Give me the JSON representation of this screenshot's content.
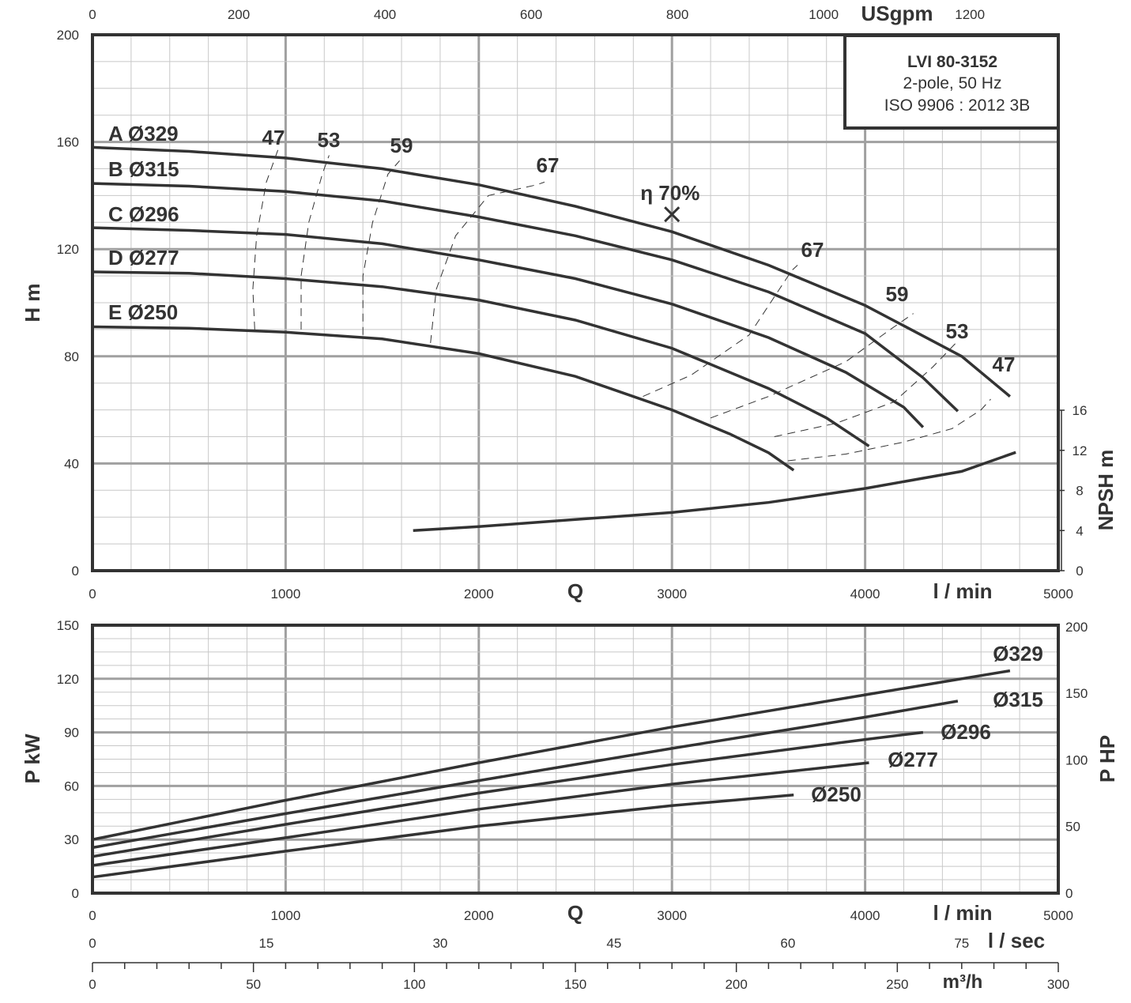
{
  "chart_data": [
    {
      "type": "line",
      "title": "LVI 80-3152",
      "subtitle_lines": [
        "2-pole, 50 Hz",
        "ISO 9906 : 2012 3B"
      ],
      "xlabel": "Q",
      "x_unit": "l / min",
      "xlim": [
        0,
        5000
      ],
      "x_ticks": [
        0,
        1000,
        2000,
        3000,
        4000,
        5000
      ],
      "top_axis": {
        "unit": "USgpm",
        "ticks": [
          0,
          200,
          400,
          600,
          800,
          1000,
          1200
        ]
      },
      "ylabel": "H m",
      "ylim": [
        0,
        200
      ],
      "y_ticks": [
        0,
        40,
        80,
        120,
        160,
        200
      ],
      "y2label": "NPSH m",
      "y2_ticks": [
        0,
        4,
        8,
        12,
        16
      ],
      "grid": true,
      "series": [
        {
          "name": "A Ø329",
          "x": [
            0,
            500,
            1000,
            1500,
            2000,
            2500,
            3000,
            3500,
            4000,
            4500,
            4750
          ],
          "y": [
            158,
            156.5,
            154,
            150,
            144,
            136,
            126.5,
            114,
            99,
            80,
            65
          ]
        },
        {
          "name": "B Ø315",
          "x": [
            0,
            500,
            1000,
            1500,
            2000,
            2500,
            3000,
            3500,
            4000,
            4300,
            4480
          ],
          "y": [
            144.5,
            143.5,
            141.5,
            138,
            132,
            125,
            116,
            104,
            88.5,
            72,
            59.5
          ]
        },
        {
          "name": "C Ø296",
          "x": [
            0,
            500,
            1000,
            1500,
            2000,
            2500,
            3000,
            3500,
            3900,
            4200,
            4300
          ],
          "y": [
            128,
            127,
            125.5,
            122,
            116,
            109,
            99.5,
            87,
            74,
            61,
            53.5
          ]
        },
        {
          "name": "D Ø277",
          "x": [
            0,
            500,
            1000,
            1500,
            2000,
            2500,
            3000,
            3500,
            3800,
            4020
          ],
          "y": [
            111.5,
            111,
            109,
            106,
            101,
            93.5,
            83,
            68,
            57,
            46.5
          ]
        },
        {
          "name": "E Ø250",
          "x": [
            0,
            500,
            1000,
            1500,
            2000,
            2500,
            3000,
            3300,
            3500,
            3630
          ],
          "y": [
            91,
            90.5,
            89,
            86.5,
            81,
            72.5,
            60,
            51,
            44,
            37.5
          ]
        }
      ],
      "npsh_curve": {
        "x": [
          1660,
          2000,
          2500,
          3000,
          3500,
          4000,
          4500,
          4780
        ],
        "y": [
          4,
          4.4,
          5.1,
          5.8,
          6.8,
          8.2,
          9.9,
          11.8
        ]
      },
      "efficiency_lines": [
        {
          "label": "47",
          "left": {
            "x": [
              840,
              830,
              850,
              900,
              960
            ],
            "y": [
              90,
              105,
              125,
              145,
              157
            ]
          },
          "right": {
            "x": [
              3600,
              3900,
              4200,
              4450,
              4600,
              4650
            ],
            "y": [
              41,
              43.5,
              48,
              53,
              60,
              64
            ]
          }
        },
        {
          "label": "53",
          "left": {
            "x": [
              1080,
              1080,
              1120,
              1190,
              1225
            ],
            "y": [
              90,
              110,
              130,
              148,
              155
            ]
          },
          "right": {
            "x": [
              3530,
              3850,
              4150,
              4350,
              4470
            ],
            "y": [
              50,
              55,
              63,
              76,
              85
            ]
          }
        },
        {
          "label": "59",
          "left": {
            "x": [
              1400,
              1400,
              1450,
              1530,
              1590
            ],
            "y": [
              88,
              110,
              130,
              148,
              153
            ]
          },
          "right": {
            "x": [
              3200,
              3500,
              3900,
              4130,
              4250
            ],
            "y": [
              57,
              65,
              78,
              90,
              96
            ]
          }
        },
        {
          "label": "67",
          "left": {
            "x": [
              1750,
              1780,
              1880,
              2050,
              2300,
              2340
            ],
            "y": [
              85,
              105,
              125,
              140,
              144,
              145
            ]
          },
          "right": {
            "x": [
              2850,
              3100,
              3400,
              3620,
              3650
            ],
            "y": [
              65,
              73,
              88,
              112,
              114
            ]
          }
        }
      ],
      "best_efficiency_point": {
        "label": "η 70%",
        "x": 3000,
        "y": 133
      }
    },
    {
      "type": "line",
      "xlabel": "Q",
      "x_unit": "l / min",
      "xlim": [
        0,
        5000
      ],
      "x_ticks": [
        0,
        1000,
        2000,
        3000,
        4000,
        5000
      ],
      "ylabel": "P kW",
      "ylim": [
        0,
        150
      ],
      "y_ticks": [
        0,
        30,
        60,
        90,
        120,
        150
      ],
      "y2label": "P HP",
      "y2_ticks": [
        0,
        50,
        100,
        150,
        200
      ],
      "grid": true,
      "series": [
        {
          "name": "Ø329",
          "x": [
            0,
            1000,
            2000,
            3000,
            4000,
            4750
          ],
          "y": [
            30,
            52,
            73,
            93,
            111,
            124.5
          ]
        },
        {
          "name": "Ø315",
          "x": [
            0,
            1000,
            2000,
            3000,
            4000,
            4480
          ],
          "y": [
            25.5,
            44.5,
            63,
            81,
            98.5,
            107.5
          ]
        },
        {
          "name": "Ø296",
          "x": [
            0,
            1000,
            2000,
            3000,
            4000,
            4300
          ],
          "y": [
            20.5,
            38.5,
            56,
            72,
            86,
            90
          ]
        },
        {
          "name": "Ø277",
          "x": [
            0,
            1000,
            2000,
            3000,
            4020
          ],
          "y": [
            15.5,
            31,
            47,
            61,
            73
          ]
        },
        {
          "name": "Ø250",
          "x": [
            0,
            1000,
            2000,
            3000,
            3630
          ],
          "y": [
            9,
            23.5,
            37.5,
            49,
            55
          ]
        }
      ],
      "extra_axes": [
        {
          "unit": "l / sec",
          "ticks": [
            0,
            15,
            30,
            45,
            60,
            75
          ]
        },
        {
          "unit": "m³/h",
          "ticks": [
            0,
            50,
            100,
            150,
            200,
            250,
            300
          ]
        }
      ]
    }
  ]
}
